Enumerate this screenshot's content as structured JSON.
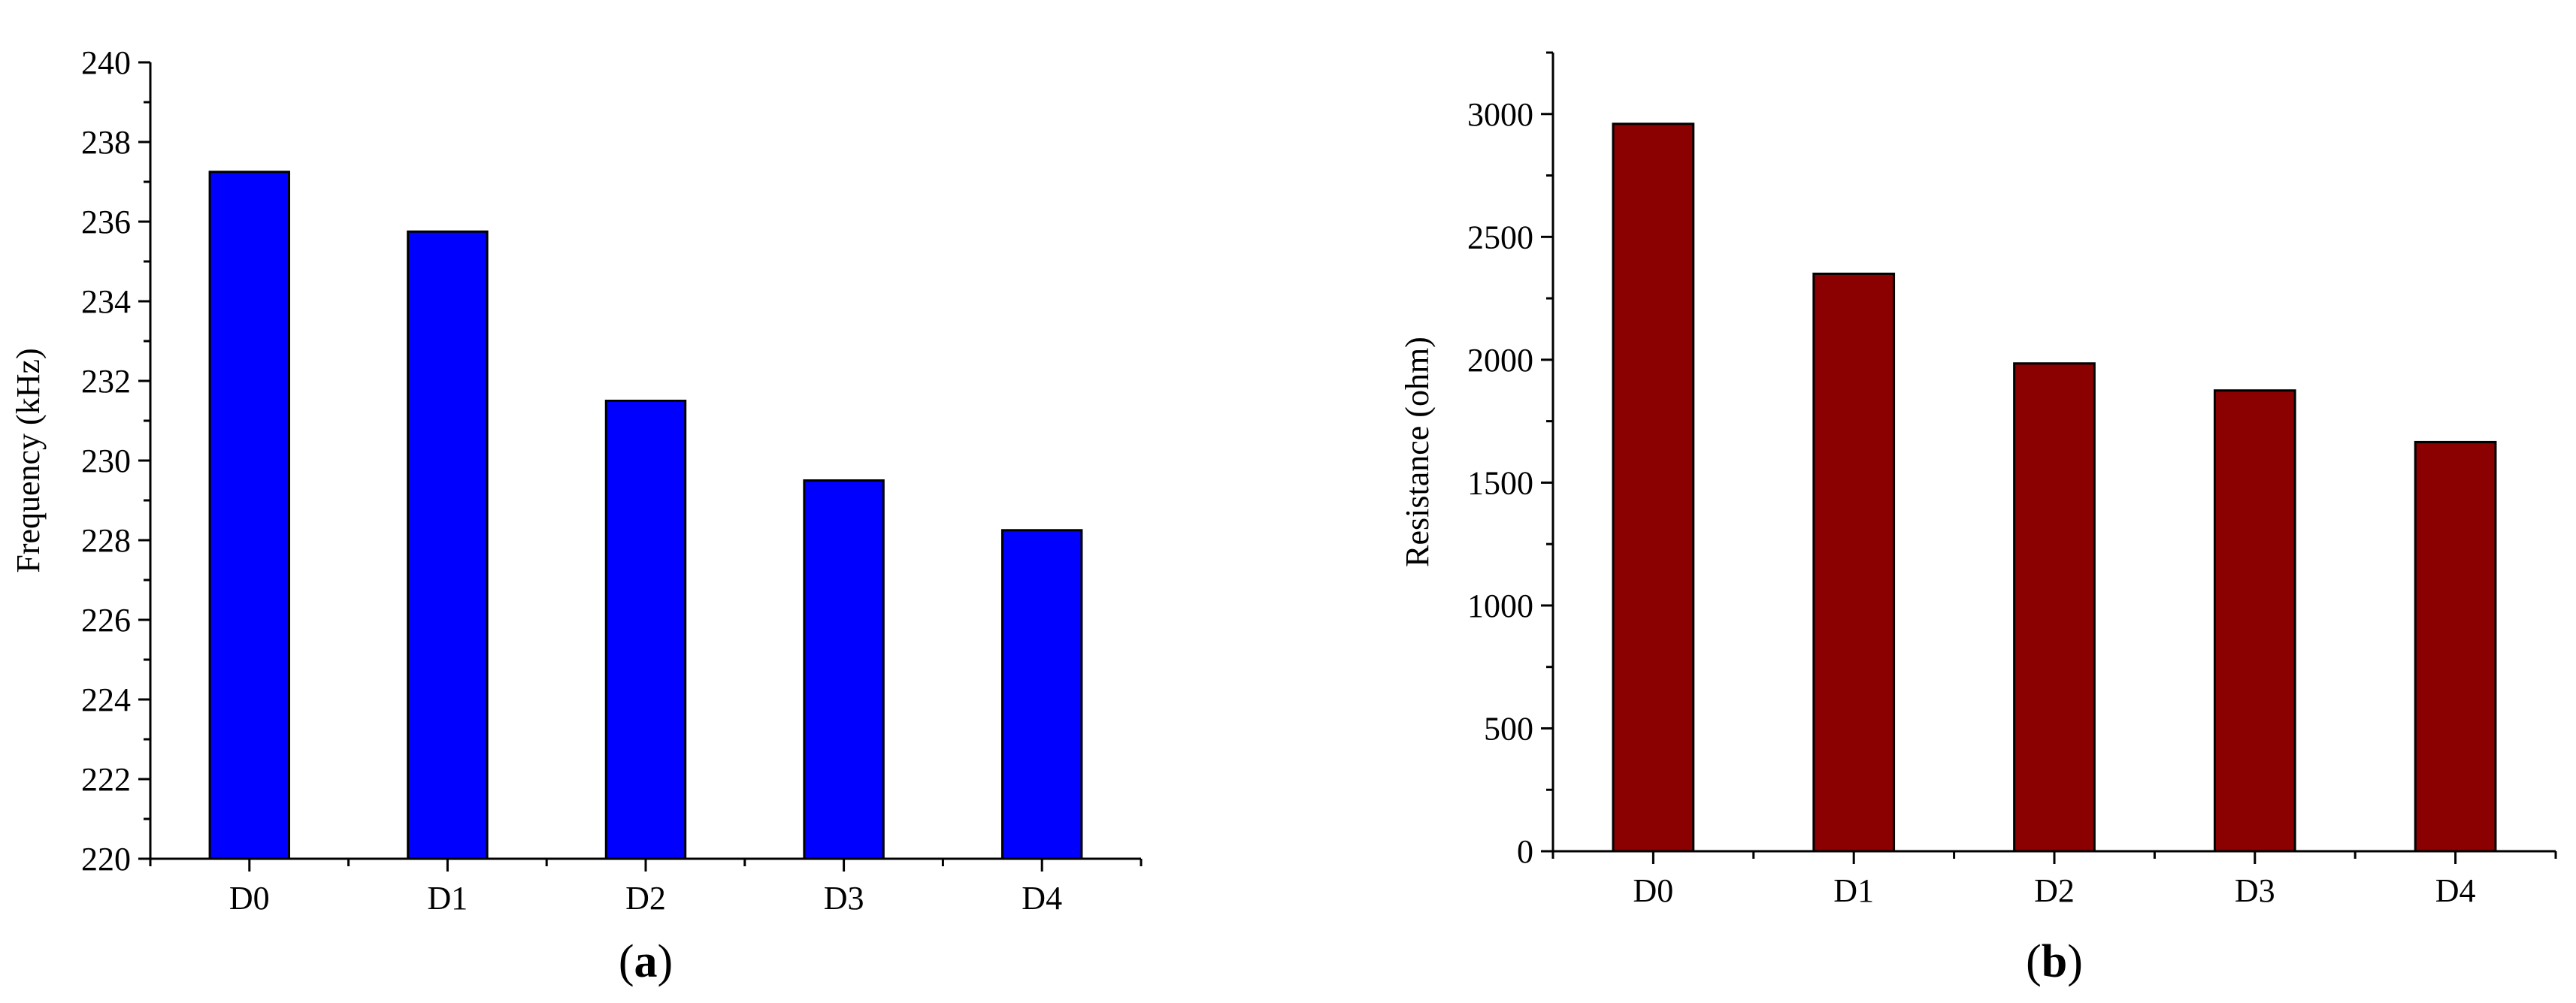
{
  "chart_data": [
    {
      "type": "bar",
      "panel_label": "a",
      "categories": [
        "D0",
        "D1",
        "D2",
        "D3",
        "D4"
      ],
      "values": [
        237.25,
        235.75,
        231.5,
        229.5,
        228.25
      ],
      "xlabel": "",
      "ylabel": "Frequency (kHz)",
      "ylim": [
        220,
        240
      ],
      "yticks": [
        220,
        222,
        224,
        226,
        228,
        230,
        232,
        234,
        236,
        238,
        240
      ],
      "grid": false,
      "bar_color": "#0000ff",
      "edge_color": "#000000"
    },
    {
      "type": "bar",
      "panel_label": "b",
      "categories": [
        "D0",
        "D1",
        "D2",
        "D3",
        "D4"
      ],
      "values": [
        2960,
        2350,
        1985,
        1875,
        1665
      ],
      "xlabel": "",
      "ylabel": "Resistance (ohm)",
      "ylim": [
        0,
        3250
      ],
      "yticks": [
        0,
        500,
        1000,
        1500,
        2000,
        2500,
        3000
      ],
      "grid": false,
      "bar_color": "#8b0000",
      "edge_color": "#000000"
    }
  ]
}
